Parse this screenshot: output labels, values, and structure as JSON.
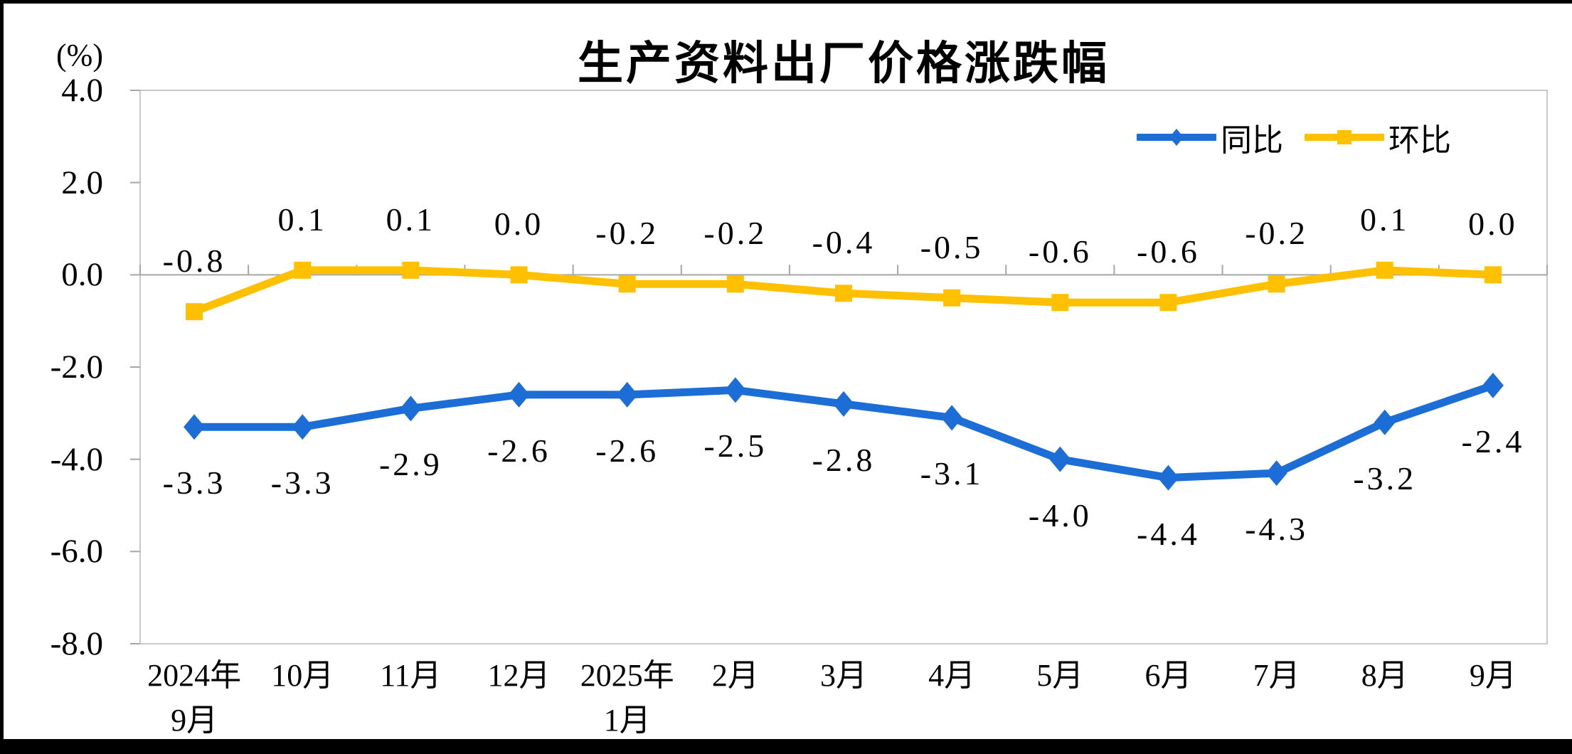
{
  "chart_data": {
    "type": "line",
    "title": "生产资料出厂价格涨跌幅",
    "unit_label": "(%)",
    "categories": [
      "2024年\n9月",
      "10月",
      "11月",
      "12月",
      "2025年\n1月",
      "2月",
      "3月",
      "4月",
      "5月",
      "6月",
      "7月",
      "8月",
      "9月"
    ],
    "series": [
      {
        "name": "同比",
        "color": "#1C6ED6",
        "marker": "diamond",
        "label_side": "below",
        "values": [
          -3.3,
          -3.3,
          -2.9,
          -2.6,
          -2.6,
          -2.5,
          -2.8,
          -3.1,
          -4.0,
          -4.4,
          -4.3,
          -3.2,
          -2.4
        ],
        "labels": [
          "-3.3",
          "-3.3",
          "-2.9",
          "-2.6",
          "-2.6",
          "-2.5",
          "-2.8",
          "-3.1",
          "-4.0",
          "-4.4",
          "-4.3",
          "-3.2",
          "-2.4"
        ]
      },
      {
        "name": "环比",
        "color": "#FFC000",
        "marker": "square",
        "label_side": "above",
        "values": [
          -0.8,
          0.1,
          0.1,
          0.0,
          -0.2,
          -0.2,
          -0.4,
          -0.5,
          -0.6,
          -0.6,
          -0.2,
          0.1,
          0.0
        ],
        "labels": [
          "-0.8",
          "0.1",
          "0.1",
          "0.0",
          "-0.2",
          "-0.2",
          "-0.4",
          "-0.5",
          "-0.6",
          "-0.6",
          "-0.2",
          "0.1",
          "0.0"
        ]
      }
    ],
    "y_axis": {
      "min": -8.0,
      "max": 4.0,
      "tick_labels": [
        "4.0",
        "2.0",
        "0.0",
        "-2.0",
        "-4.0",
        "-6.0",
        "-8.0"
      ],
      "tick_values": [
        4,
        2,
        0,
        -2,
        -4,
        -6,
        -8
      ]
    },
    "legend": {
      "entries": [
        "同比",
        "环比"
      ],
      "position": "top-right-inside"
    },
    "grid": "zero-line-only",
    "colors": {
      "plot_border": "#C8C8C8",
      "zero_line": "#A6A6A6",
      "axis_tick": "#A6A6A6",
      "text": "#000000",
      "background": "#FFFFFF",
      "outer_frame": "#000000"
    }
  }
}
